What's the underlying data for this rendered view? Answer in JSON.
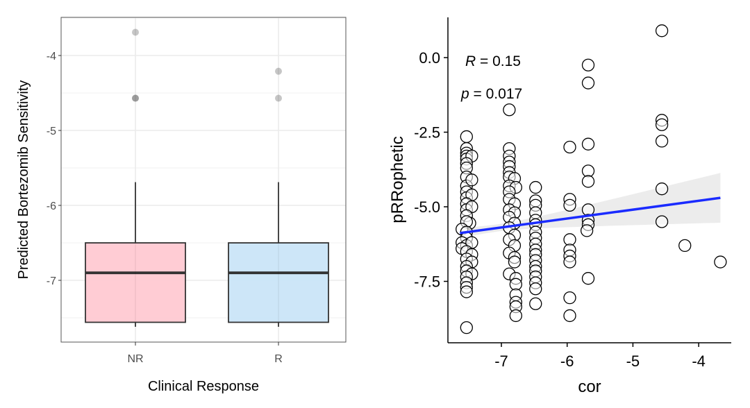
{
  "chart_data": [
    {
      "type": "box",
      "title": "",
      "xlabel": "Clinical Response",
      "ylabel": "Predicted Bortezomib Sensitivity",
      "ylim": [
        -7.8,
        -3.5
      ],
      "yticks": [
        -4,
        -5,
        -6,
        -7
      ],
      "ytick_labels": [
        "-4",
        "-5",
        "-6",
        "-7"
      ],
      "grid": true,
      "categories": [
        "NR",
        "R"
      ],
      "colors": {
        "NR": "#FFC8D0",
        "R": "#C9E4F7"
      },
      "boxes": [
        {
          "category": "NR",
          "whisker_low": -7.62,
          "q1": -7.56,
          "median": -6.9,
          "q3": -6.5,
          "whisker_high": -5.69,
          "outliers": [
            -3.69,
            -4.57,
            -4.57
          ]
        },
        {
          "category": "R",
          "whisker_low": -7.62,
          "q1": -7.56,
          "median": -6.9,
          "q3": -6.5,
          "whisker_high": -5.69,
          "outliers": [
            -4.21,
            -4.57
          ]
        }
      ]
    },
    {
      "type": "scatter",
      "title": "",
      "xlabel": "cor",
      "ylabel": "pRRophetic",
      "xlim": [
        -7.75,
        -3.55
      ],
      "ylim": [
        -9.5,
        1.3
      ],
      "xticks": [
        -7,
        -6,
        -5,
        -4
      ],
      "xtick_labels": [
        "-7",
        "-6",
        "-5",
        "-4"
      ],
      "yticks": [
        0.0,
        -2.5,
        -5.0,
        -7.5
      ],
      "ytick_labels": [
        "0.0",
        "-2.5",
        "-5.0",
        "-7.5"
      ],
      "grid": false,
      "annotation": {
        "r_label": "R",
        "r_value": " = 0.15",
        "p_label": "p",
        "p_value": " = 0.017"
      },
      "regression": {
        "color": "#1A2BFF",
        "x": [
          -7.63,
          -3.67
        ],
        "y": [
          -5.88,
          -4.7
        ],
        "ci_low": [
          -6.02,
          -5.53
        ],
        "ci_high": [
          -5.74,
          -3.88
        ]
      },
      "points": [
        {
          "x": -7.53,
          "y": -2.65
        },
        {
          "x": -7.53,
          "y": -3.05
        },
        {
          "x": -7.53,
          "y": -3.2
        },
        {
          "x": -7.53,
          "y": -3.3
        },
        {
          "x": -7.53,
          "y": -3.4
        },
        {
          "x": -7.45,
          "y": -3.3
        },
        {
          "x": -7.53,
          "y": -3.55
        },
        {
          "x": -7.53,
          "y": -3.7
        },
        {
          "x": -7.53,
          "y": -4.0
        },
        {
          "x": -7.53,
          "y": -4.3
        },
        {
          "x": -7.45,
          "y": -4.1
        },
        {
          "x": -7.53,
          "y": -4.5
        },
        {
          "x": -7.53,
          "y": -4.7
        },
        {
          "x": -7.45,
          "y": -4.6
        },
        {
          "x": -7.53,
          "y": -4.9
        },
        {
          "x": -7.53,
          "y": -5.1
        },
        {
          "x": -7.45,
          "y": -5.0
        },
        {
          "x": -7.53,
          "y": -5.3
        },
        {
          "x": -7.48,
          "y": -5.55
        },
        {
          "x": -7.53,
          "y": -5.5
        },
        {
          "x": -7.6,
          "y": -5.75
        },
        {
          "x": -7.53,
          "y": -5.85
        },
        {
          "x": -7.53,
          "y": -6.05
        },
        {
          "x": -7.6,
          "y": -6.2
        },
        {
          "x": -7.53,
          "y": -6.3
        },
        {
          "x": -7.45,
          "y": -6.2
        },
        {
          "x": -7.6,
          "y": -6.4
        },
        {
          "x": -7.53,
          "y": -6.5
        },
        {
          "x": -7.45,
          "y": -6.6
        },
        {
          "x": -7.53,
          "y": -6.75
        },
        {
          "x": -7.45,
          "y": -6.85
        },
        {
          "x": -7.53,
          "y": -7.0
        },
        {
          "x": -7.53,
          "y": -7.15
        },
        {
          "x": -7.45,
          "y": -7.25
        },
        {
          "x": -7.53,
          "y": -7.35
        },
        {
          "x": -7.53,
          "y": -7.55
        },
        {
          "x": -7.53,
          "y": -7.7
        },
        {
          "x": -7.53,
          "y": -7.85
        },
        {
          "x": -7.53,
          "y": -9.05
        },
        {
          "x": -6.88,
          "y": -1.75
        },
        {
          "x": -6.88,
          "y": -3.05
        },
        {
          "x": -6.88,
          "y": -3.3
        },
        {
          "x": -6.88,
          "y": -3.5
        },
        {
          "x": -6.88,
          "y": -3.65
        },
        {
          "x": -6.88,
          "y": -3.85
        },
        {
          "x": -6.88,
          "y": -4.0
        },
        {
          "x": -6.8,
          "y": -4.05
        },
        {
          "x": -6.88,
          "y": -4.3
        },
        {
          "x": -6.78,
          "y": -4.35
        },
        {
          "x": -6.88,
          "y": -4.5
        },
        {
          "x": -6.88,
          "y": -4.75
        },
        {
          "x": -6.8,
          "y": -4.9
        },
        {
          "x": -6.88,
          "y": -5.1
        },
        {
          "x": -6.8,
          "y": -5.2
        },
        {
          "x": -6.88,
          "y": -5.35
        },
        {
          "x": -6.8,
          "y": -5.55
        },
        {
          "x": -6.88,
          "y": -5.7
        },
        {
          "x": -6.8,
          "y": -5.95
        },
        {
          "x": -6.88,
          "y": -6.1
        },
        {
          "x": -6.8,
          "y": -6.3
        },
        {
          "x": -6.88,
          "y": -6.55
        },
        {
          "x": -6.8,
          "y": -6.7
        },
        {
          "x": -6.8,
          "y": -6.85
        },
        {
          "x": -6.88,
          "y": -7.25
        },
        {
          "x": -6.78,
          "y": -7.4
        },
        {
          "x": -6.78,
          "y": -7.6
        },
        {
          "x": -6.78,
          "y": -7.95
        },
        {
          "x": -6.78,
          "y": -8.2
        },
        {
          "x": -6.78,
          "y": -8.35
        },
        {
          "x": -6.78,
          "y": -8.65
        },
        {
          "x": -6.48,
          "y": -4.35
        },
        {
          "x": -6.48,
          "y": -4.8
        },
        {
          "x": -6.48,
          "y": -4.95
        },
        {
          "x": -6.48,
          "y": -5.2
        },
        {
          "x": -6.48,
          "y": -5.45
        },
        {
          "x": -6.48,
          "y": -5.6
        },
        {
          "x": -6.48,
          "y": -5.85
        },
        {
          "x": -6.48,
          "y": -6.05
        },
        {
          "x": -6.48,
          "y": -6.25
        },
        {
          "x": -6.48,
          "y": -6.45
        },
        {
          "x": -6.48,
          "y": -6.6
        },
        {
          "x": -6.48,
          "y": -6.8
        },
        {
          "x": -6.48,
          "y": -7.0
        },
        {
          "x": -6.48,
          "y": -7.15
        },
        {
          "x": -6.48,
          "y": -7.35
        },
        {
          "x": -6.48,
          "y": -7.55
        },
        {
          "x": -6.48,
          "y": -7.75
        },
        {
          "x": -6.48,
          "y": -8.25
        },
        {
          "x": -5.96,
          "y": -3.0
        },
        {
          "x": -5.96,
          "y": -4.75
        },
        {
          "x": -5.96,
          "y": -4.95
        },
        {
          "x": -5.96,
          "y": -6.1
        },
        {
          "x": -5.96,
          "y": -6.45
        },
        {
          "x": -5.96,
          "y": -6.65
        },
        {
          "x": -5.96,
          "y": -6.85
        },
        {
          "x": -5.96,
          "y": -8.05
        },
        {
          "x": -5.96,
          "y": -8.65
        },
        {
          "x": -5.68,
          "y": -0.25
        },
        {
          "x": -5.68,
          "y": -0.85
        },
        {
          "x": -5.68,
          "y": -2.9
        },
        {
          "x": -5.68,
          "y": -3.8
        },
        {
          "x": -5.68,
          "y": -4.15
        },
        {
          "x": -5.68,
          "y": -5.1
        },
        {
          "x": -5.68,
          "y": -5.45
        },
        {
          "x": -5.68,
          "y": -5.6
        },
        {
          "x": -5.7,
          "y": -5.8
        },
        {
          "x": -5.68,
          "y": -7.4
        },
        {
          "x": -4.56,
          "y": 0.9
        },
        {
          "x": -4.56,
          "y": -2.1
        },
        {
          "x": -4.56,
          "y": -2.25
        },
        {
          "x": -4.56,
          "y": -2.8
        },
        {
          "x": -4.56,
          "y": -4.4
        },
        {
          "x": -4.56,
          "y": -5.5
        },
        {
          "x": -4.21,
          "y": -6.3
        },
        {
          "x": -3.67,
          "y": -6.85
        }
      ]
    }
  ]
}
